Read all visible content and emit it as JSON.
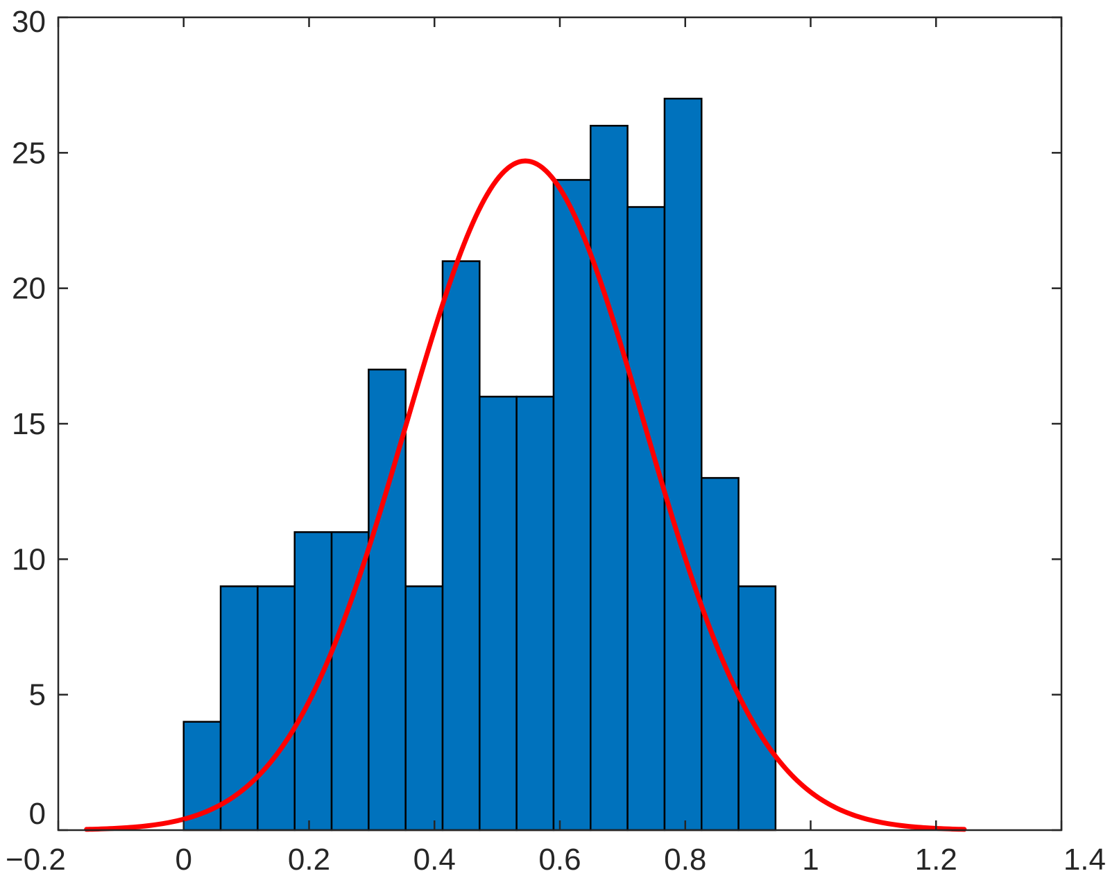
{
  "chart_data": {
    "type": "bar",
    "title": "",
    "xlabel": "",
    "ylabel": "",
    "xlim": [
      -0.2,
      1.4
    ],
    "ylim": [
      0,
      30
    ],
    "grid": false,
    "x_ticks": [
      -0.2,
      0,
      0.2,
      0.4,
      0.6,
      0.8,
      1,
      1.2,
      1.4
    ],
    "x_tick_labels": [
      "−0.2",
      "0",
      "0.2",
      "0.4",
      "0.6",
      "0.8",
      "1",
      "1.2",
      "1.4"
    ],
    "y_ticks": [
      0,
      5,
      10,
      15,
      20,
      25,
      30
    ],
    "y_tick_labels": [
      "0",
      "5",
      "10",
      "15",
      "20",
      "25",
      "30"
    ],
    "histogram": {
      "bin_edges": [
        0,
        0.059,
        0.118,
        0.177,
        0.236,
        0.295,
        0.354,
        0.413,
        0.472,
        0.531,
        0.59,
        0.649,
        0.708,
        0.767,
        0.826,
        0.885,
        0.944
      ],
      "counts": [
        4,
        9,
        9,
        11,
        11,
        17,
        9,
        21,
        16,
        16,
        24,
        26,
        23,
        27,
        13,
        9
      ],
      "color": "#0072BD",
      "edge_color": "#000000"
    },
    "fit_curve": {
      "type": "normal",
      "mean": 0.545,
      "std": 0.19,
      "peak": 24.7,
      "x_range": [
        -0.155,
        1.245
      ],
      "color": "#FF0000"
    }
  }
}
